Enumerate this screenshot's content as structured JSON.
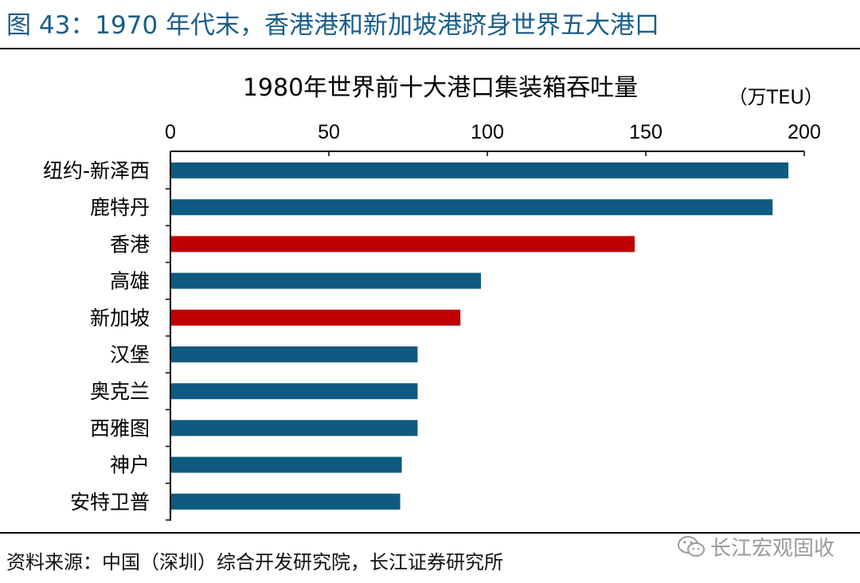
{
  "header": {
    "figure_title": "图 43：1970 年代末，香港港和新加坡港跻身世界五大港口"
  },
  "footer": {
    "source": "资料来源：中国（深圳）综合开发研究院，长江证券研究所",
    "watermark": "长江宏观固收",
    "watermark_icon": "wechat-icon"
  },
  "colors": {
    "title": "#1a5e8a",
    "bar_default": "#0f5a80",
    "bar_highlight": "#c00000"
  },
  "chart_data": {
    "type": "bar",
    "orientation": "horizontal",
    "title": "1980年世界前十大港口集装箱吞吐量",
    "unit": "（万TEU）",
    "xlabel": "",
    "ylabel": "",
    "xlim": [
      0,
      200
    ],
    "xticks": [
      0,
      50,
      100,
      150,
      200
    ],
    "axis_position": "top",
    "grid": false,
    "categories": [
      "纽约-新泽西",
      "鹿特丹",
      "香港",
      "高雄",
      "新加坡",
      "汉堡",
      "奥克兰",
      "西雅图",
      "神户",
      "安特卫普"
    ],
    "values": [
      195,
      190,
      146.5,
      98,
      91.5,
      78,
      78,
      78,
      73,
      72.5
    ],
    "highlight": [
      "香港",
      "新加坡"
    ]
  }
}
